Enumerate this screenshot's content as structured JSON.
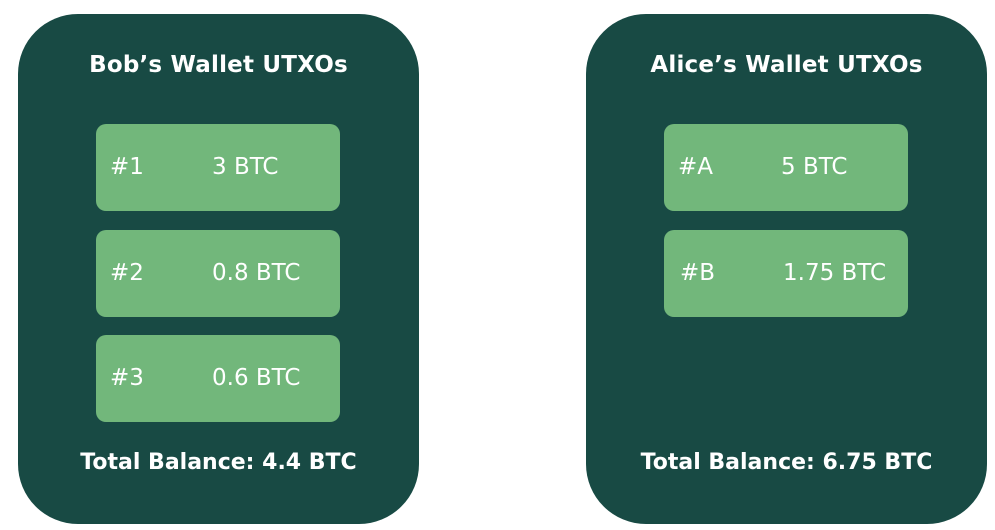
{
  "wallets": [
    {
      "title": "Bob’s Wallet UTXOs",
      "utxos": [
        {
          "id": "#1",
          "amount": "3 BTC"
        },
        {
          "id": "#2",
          "amount": "0.8 BTC"
        },
        {
          "id": "#3",
          "amount": "0.6 BTC"
        }
      ],
      "total": "Total Balance: 4.4 BTC"
    },
    {
      "title": "Alice’s Wallet UTXOs",
      "utxos": [
        {
          "id": "#A",
          "amount": "5 BTC"
        },
        {
          "id": "#B",
          "amount": "1.75 BTC"
        }
      ],
      "total": "Total Balance: 6.75 BTC"
    }
  ],
  "colors": {
    "wallet_background": "#184a44",
    "utxo_background": "#72b77b",
    "text": "#ffffff"
  }
}
